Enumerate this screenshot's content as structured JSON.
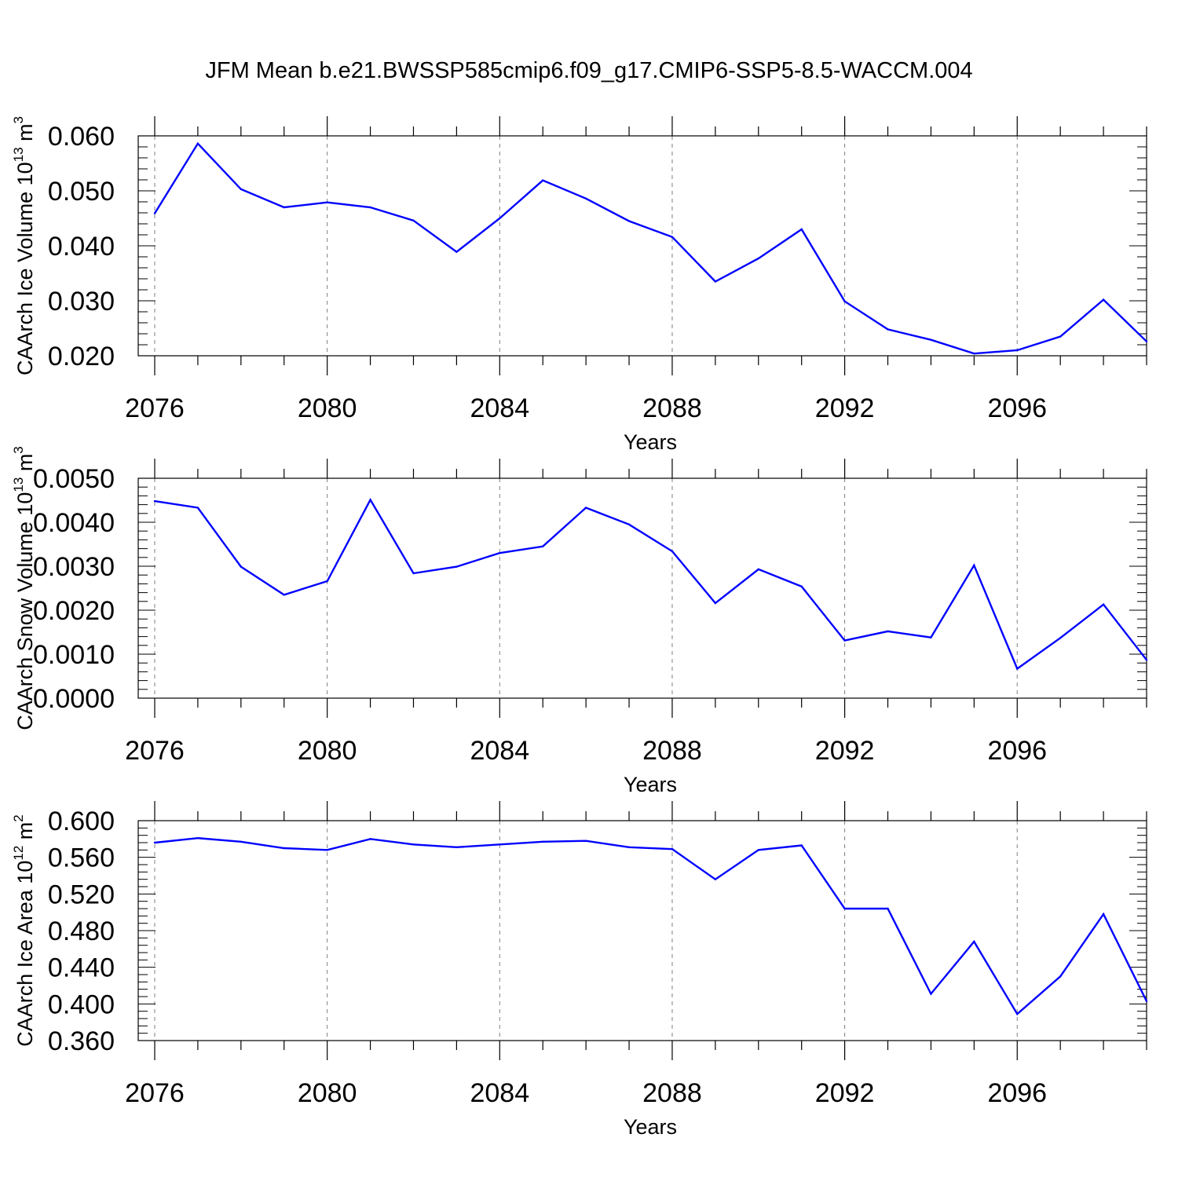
{
  "title": "JFM Mean b.e21.BWSSP585cmip6.f09_g17.CMIP6-SSP5-8.5-WACCM.004",
  "colors": {
    "line": "#0000ff",
    "axis": "#000000",
    "grid": "#7f7f7f"
  },
  "chart_data": [
    {
      "type": "line",
      "ylabel": {
        "text": "CAArch Ice Volume 10",
        "sup1": "13",
        "mid": " m",
        "sup2": "3"
      },
      "xlabel": "Years",
      "xlim": [
        2076,
        2099
      ],
      "ylim": [
        0.02,
        0.06
      ],
      "x_ticks": [
        2076,
        2080,
        2084,
        2088,
        2092,
        2096
      ],
      "x_tick_labels": [
        "2076",
        "2080",
        "2084",
        "2088",
        "2092",
        "2096"
      ],
      "y_ticks": [
        0.02,
        0.03,
        0.04,
        0.05,
        0.06
      ],
      "y_tick_labels": [
        "0.020",
        "0.030",
        "0.040",
        "0.050",
        "0.060"
      ],
      "y_minor_step": 0.002,
      "grid": "vertical dashed at major x ticks",
      "x": [
        2076,
        2077,
        2078,
        2079,
        2080,
        2081,
        2082,
        2083,
        2084,
        2085,
        2086,
        2087,
        2088,
        2089,
        2090,
        2091,
        2092,
        2093,
        2094,
        2095,
        2096,
        2097,
        2098,
        2099
      ],
      "values": [
        0.0459,
        0.0586,
        0.0503,
        0.047,
        0.0479,
        0.047,
        0.0446,
        0.0389,
        0.045,
        0.0519,
        0.0486,
        0.0445,
        0.0416,
        0.0335,
        0.0377,
        0.043,
        0.0299,
        0.0248,
        0.0229,
        0.0204,
        0.021,
        0.0235,
        0.0302,
        0.0226
      ]
    },
    {
      "type": "line",
      "ylabel": {
        "text": "CAArch Snow Volume 10",
        "sup1": "13",
        "mid": " m",
        "sup2": "3"
      },
      "xlabel": "Years",
      "xlim": [
        2076,
        2099
      ],
      "ylim": [
        0.0,
        0.005
      ],
      "x_ticks": [
        2076,
        2080,
        2084,
        2088,
        2092,
        2096
      ],
      "x_tick_labels": [
        "2076",
        "2080",
        "2084",
        "2088",
        "2092",
        "2096"
      ],
      "y_ticks": [
        0.0,
        0.001,
        0.002,
        0.003,
        0.004,
        0.005
      ],
      "y_tick_labels": [
        "0.0000",
        "0.0010",
        "0.0020",
        "0.0030",
        "0.0040",
        "0.0050"
      ],
      "y_minor_step": 0.0002,
      "grid": "vertical dashed at major x ticks",
      "x": [
        2076,
        2077,
        2078,
        2079,
        2080,
        2081,
        2082,
        2083,
        2084,
        2085,
        2086,
        2087,
        2088,
        2089,
        2090,
        2091,
        2092,
        2093,
        2094,
        2095,
        2096,
        2097,
        2098,
        2099
      ],
      "values": [
        0.00448,
        0.00433,
        0.00299,
        0.00235,
        0.00266,
        0.00451,
        0.00284,
        0.00299,
        0.0033,
        0.00345,
        0.00433,
        0.00395,
        0.00334,
        0.00216,
        0.00293,
        0.00254,
        0.00131,
        0.00152,
        0.00138,
        0.00302,
        0.00067,
        0.00137,
        0.00213,
        0.00087
      ]
    },
    {
      "type": "line",
      "ylabel": {
        "text": "CAArch Ice Area 10",
        "sup1": "12",
        "mid": " m",
        "sup2": "2"
      },
      "xlabel": "Years",
      "xlim": [
        2076,
        2099
      ],
      "ylim": [
        0.36,
        0.6
      ],
      "x_ticks": [
        2076,
        2080,
        2084,
        2088,
        2092,
        2096
      ],
      "x_tick_labels": [
        "2076",
        "2080",
        "2084",
        "2088",
        "2092",
        "2096"
      ],
      "y_ticks": [
        0.36,
        0.4,
        0.44,
        0.48,
        0.52,
        0.56,
        0.6
      ],
      "y_tick_labels": [
        "0.360",
        "0.400",
        "0.440",
        "0.480",
        "0.520",
        "0.560",
        "0.600"
      ],
      "y_minor_step": 0.008,
      "grid": "vertical dashed at major x ticks",
      "x": [
        2076,
        2077,
        2078,
        2079,
        2080,
        2081,
        2082,
        2083,
        2084,
        2085,
        2086,
        2087,
        2088,
        2089,
        2090,
        2091,
        2092,
        2093,
        2094,
        2095,
        2096,
        2097,
        2098,
        2099
      ],
      "values": [
        0.576,
        0.581,
        0.577,
        0.57,
        0.568,
        0.58,
        0.574,
        0.571,
        0.574,
        0.577,
        0.578,
        0.571,
        0.569,
        0.536,
        0.568,
        0.573,
        0.504,
        0.504,
        0.411,
        0.468,
        0.389,
        0.43,
        0.498,
        0.403
      ]
    }
  ]
}
